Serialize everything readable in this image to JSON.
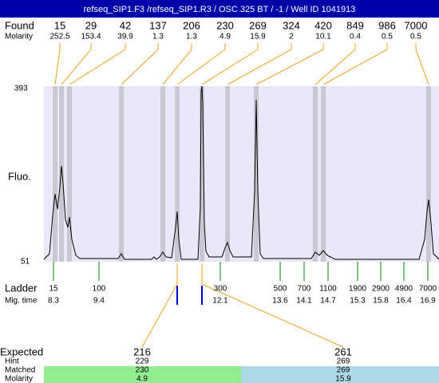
{
  "title": "refseq_SIP1.F3 /refseq_SIP1.R3 / OSC 325 BT / -1  / Well ID 1041913",
  "found": {
    "label": "Found",
    "molarity_label": "Molarity",
    "peaks": [
      {
        "size": "15",
        "molarity": "252.5"
      },
      {
        "size": "29",
        "molarity": "153.4"
      },
      {
        "size": "42",
        "molarity": "39.9"
      },
      {
        "size": "137",
        "molarity": "1.3"
      },
      {
        "size": "206",
        "molarity": "1.3"
      },
      {
        "size": "230",
        "molarity": "4.9"
      },
      {
        "size": "269",
        "molarity": "15.9"
      },
      {
        "size": "324",
        "molarity": "2"
      },
      {
        "size": "420",
        "molarity": "10.1"
      },
      {
        "size": "849",
        "molarity": "0.4"
      },
      {
        "size": "986",
        "molarity": "0.5"
      },
      {
        "size": "7000",
        "molarity": "0.5"
      }
    ]
  },
  "y_axis": {
    "label": "Fluo.",
    "max": "393",
    "min": "51"
  },
  "ladder": {
    "label": "Ladder",
    "time_label": "Mig. time",
    "items": [
      {
        "size": "15",
        "time": "8.3"
      },
      {
        "size": "100",
        "time": "9.4"
      },
      {
        "size": "300",
        "time": "12.1"
      },
      {
        "size": "500",
        "time": "13.6"
      },
      {
        "size": "700",
        "time": "14.1"
      },
      {
        "size": "1100",
        "time": "14.7"
      },
      {
        "size": "1900",
        "time": "15.3"
      },
      {
        "size": "2900",
        "time": "15.8"
      },
      {
        "size": "4900",
        "time": "16.4"
      },
      {
        "size": "7000",
        "time": "16.9"
      }
    ]
  },
  "expected": {
    "labels": [
      "Expected",
      "Hint",
      "Matched",
      "Molarity"
    ],
    "columns": [
      {
        "expected": "216",
        "hint": "229",
        "matched": "230",
        "molarity": "4.9"
      },
      {
        "expected": "261",
        "hint": "269",
        "matched": "269",
        "molarity": "15.9"
      }
    ]
  }
}
